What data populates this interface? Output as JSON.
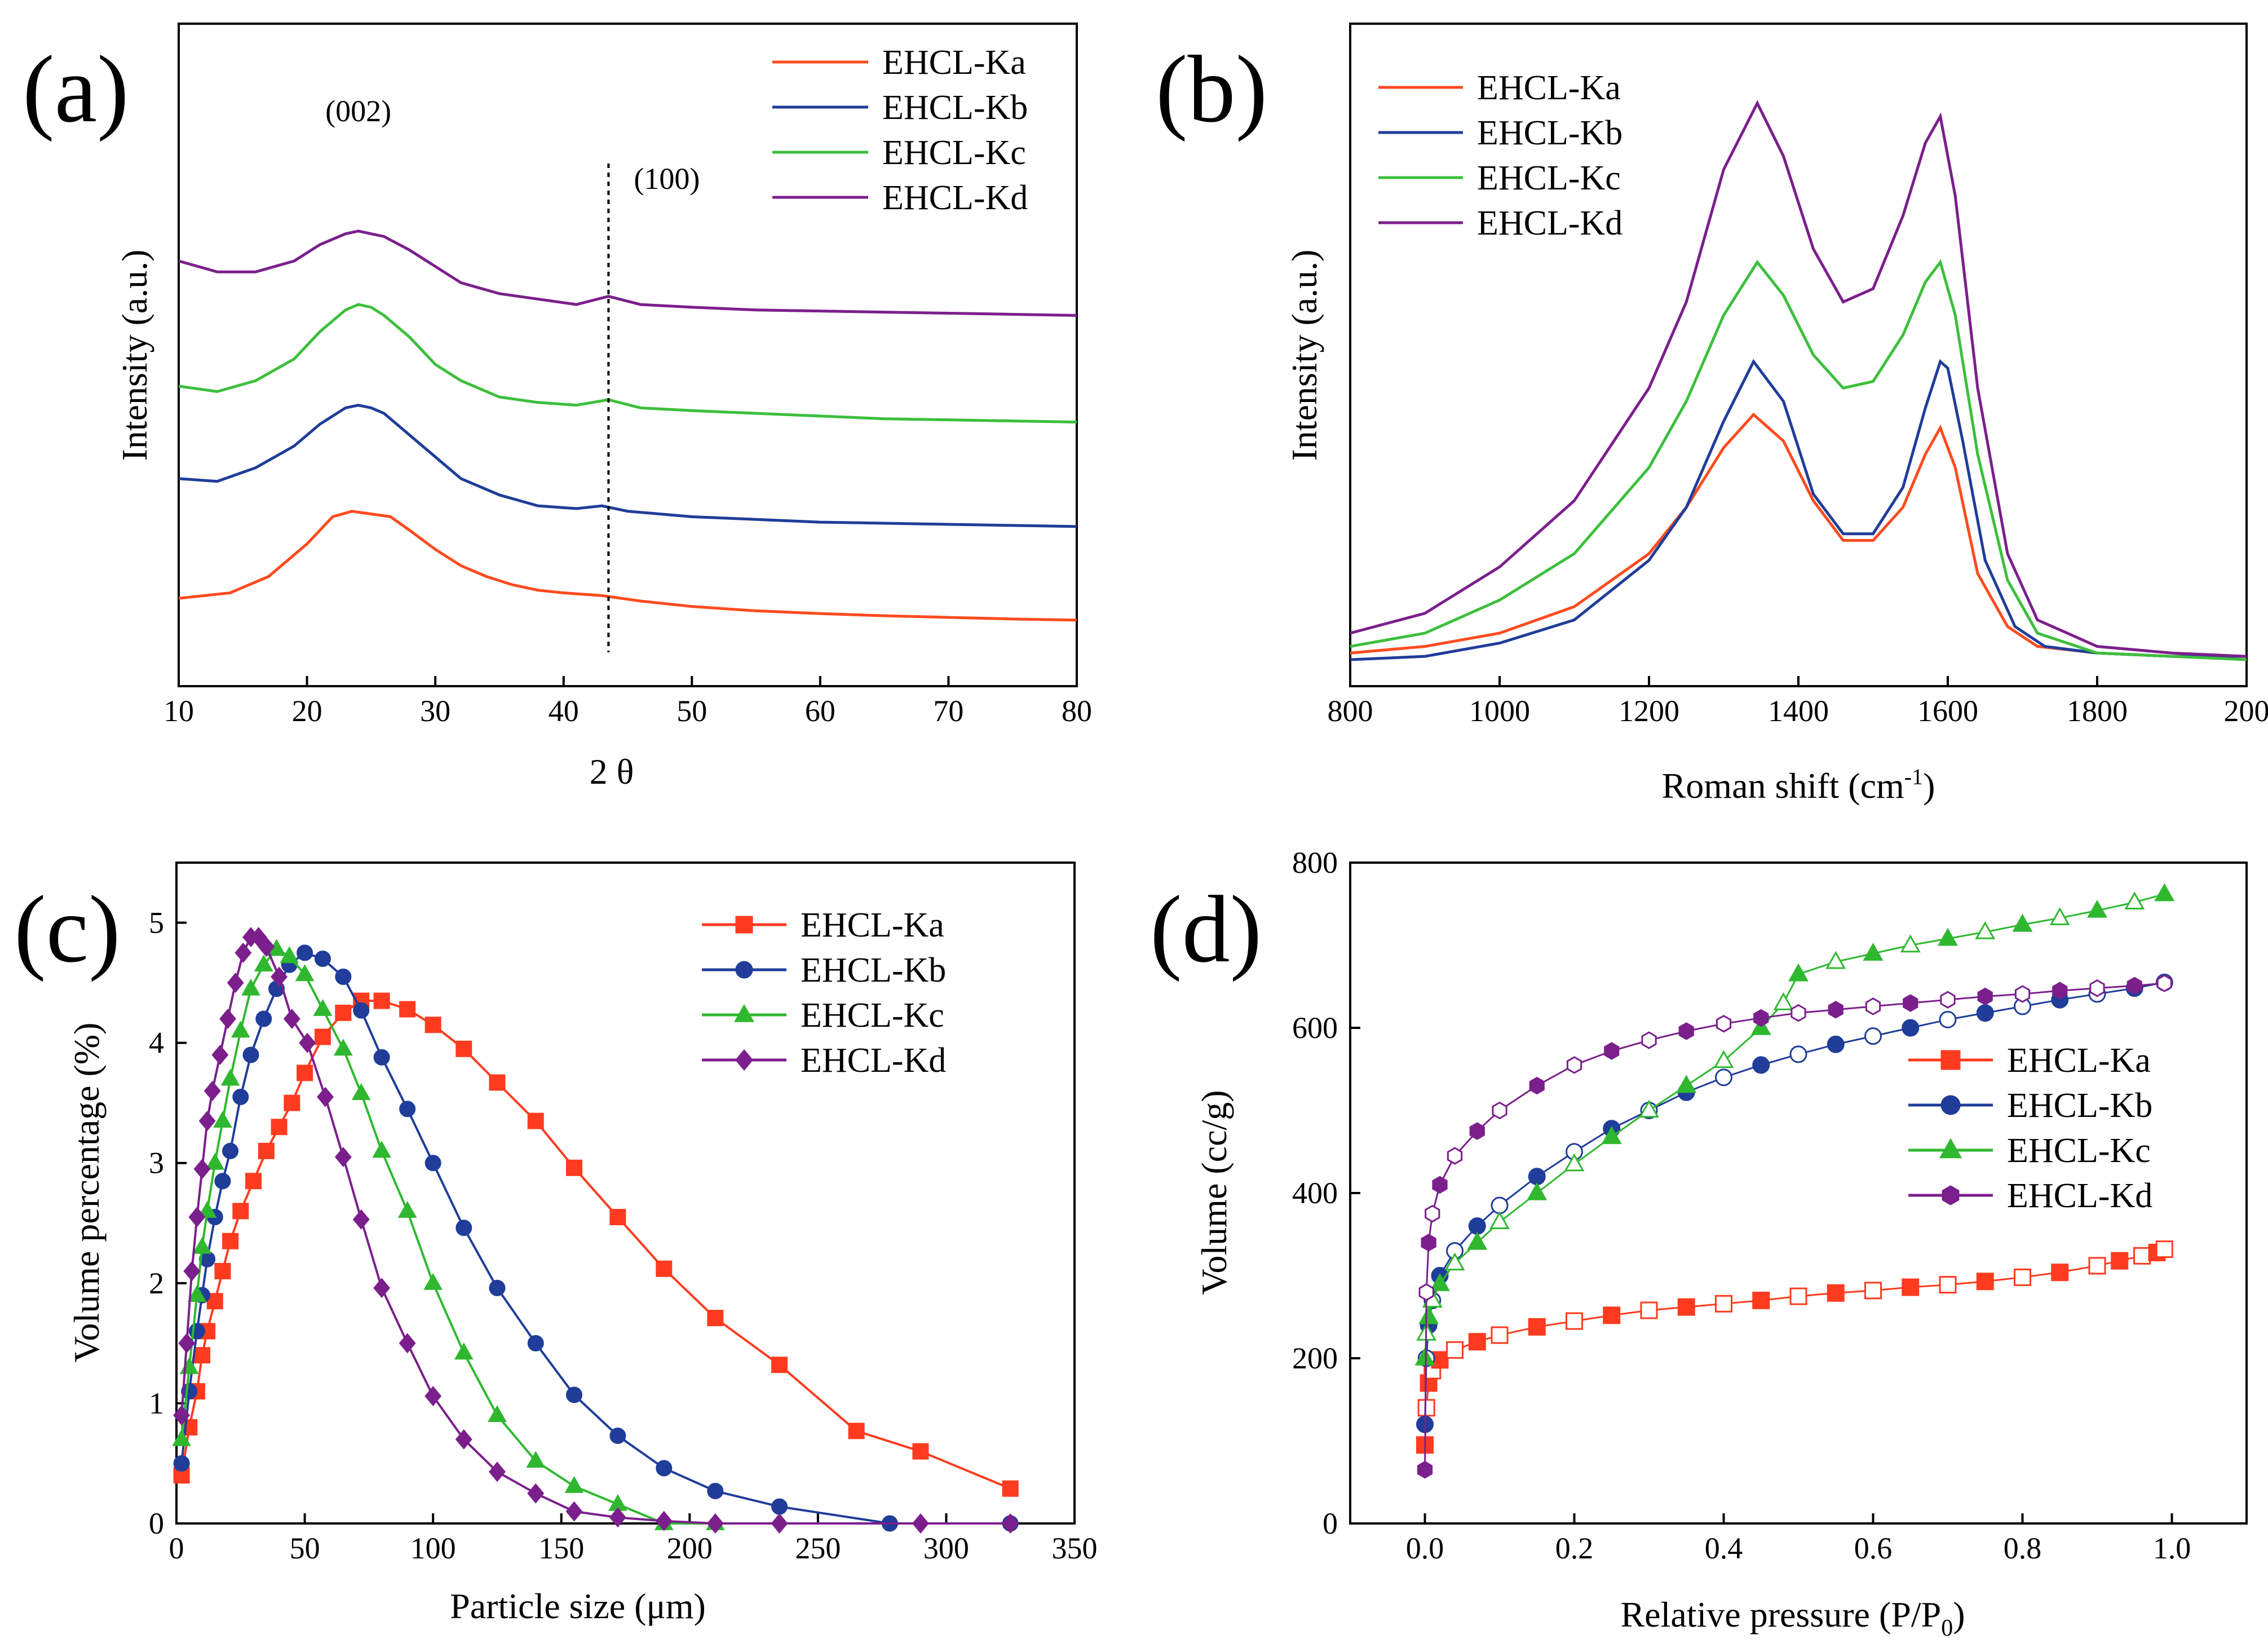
{
  "chart_data": [
    {
      "id": "a",
      "type": "line",
      "panel_label": "(a)",
      "xlabel": "2 θ",
      "ylabel": "Intensity (a.u.)",
      "xlim": [
        10,
        80
      ],
      "ylim": [
        0,
        1
      ],
      "xticks": [
        "10",
        "20",
        "30",
        "40",
        "50",
        "60",
        "70",
        "80"
      ],
      "annotations": [
        {
          "text": "(002)",
          "x": 24
        },
        {
          "text": "(100)",
          "x": 43.5
        }
      ],
      "reference_line_x": 43.5,
      "series": [
        {
          "name": "EHCL-Ka",
          "color": "#ff4b1f",
          "x": [
            10,
            14,
            17,
            20,
            22,
            23.5,
            25,
            26.5,
            28,
            30,
            32,
            34,
            36,
            38,
            40,
            43,
            46,
            50,
            55,
            60,
            65,
            70,
            75,
            80
          ],
          "y": [
            0.12,
            0.13,
            0.16,
            0.22,
            0.27,
            0.28,
            0.275,
            0.27,
            0.245,
            0.21,
            0.18,
            0.16,
            0.145,
            0.135,
            0.13,
            0.125,
            0.115,
            0.105,
            0.097,
            0.092,
            0.088,
            0.085,
            0.082,
            0.08
          ]
        },
        {
          "name": "EHCL-Kb",
          "color": "#1f3d99",
          "x": [
            10,
            13,
            16,
            19,
            21,
            23,
            24,
            25,
            26,
            28,
            30,
            32,
            35,
            38,
            41,
            43,
            45,
            50,
            55,
            60,
            65,
            70,
            75,
            80
          ],
          "y": [
            0.34,
            0.335,
            0.36,
            0.4,
            0.44,
            0.47,
            0.475,
            0.47,
            0.46,
            0.42,
            0.38,
            0.34,
            0.31,
            0.29,
            0.285,
            0.29,
            0.28,
            0.27,
            0.265,
            0.26,
            0.258,
            0.256,
            0.254,
            0.252
          ]
        },
        {
          "name": "EHCL-Kc",
          "color": "#3cbf3c",
          "x": [
            10,
            13,
            16,
            19,
            21,
            23,
            24,
            25,
            26,
            28,
            30,
            32,
            35,
            38,
            41,
            43.5,
            46,
            50,
            55,
            60,
            65,
            70,
            75,
            80
          ],
          "y": [
            0.51,
            0.5,
            0.52,
            0.56,
            0.61,
            0.65,
            0.66,
            0.655,
            0.64,
            0.6,
            0.55,
            0.52,
            0.49,
            0.48,
            0.475,
            0.485,
            0.47,
            0.465,
            0.46,
            0.455,
            0.45,
            0.448,
            0.446,
            0.444
          ]
        },
        {
          "name": "EHCL-Kd",
          "color": "#7b1f8c",
          "x": [
            10,
            13,
            16,
            19,
            21,
            23,
            24,
            25,
            26,
            28,
            30,
            32,
            35,
            38,
            41,
            43.5,
            46,
            50,
            55,
            60,
            65,
            70,
            75,
            80
          ],
          "y": [
            0.74,
            0.72,
            0.72,
            0.74,
            0.77,
            0.79,
            0.795,
            0.79,
            0.785,
            0.76,
            0.73,
            0.7,
            0.68,
            0.67,
            0.66,
            0.675,
            0.66,
            0.655,
            0.65,
            0.648,
            0.646,
            0.644,
            0.642,
            0.64
          ]
        }
      ]
    },
    {
      "id": "b",
      "type": "line",
      "panel_label": "(b)",
      "xlabel": "Roman shift (cm",
      "xlabel_sup": "-1",
      "xlabel_end": ")",
      "ylabel": "Intensity (a.u.)",
      "xlim": [
        800,
        2000
      ],
      "ylim": [
        0,
        1
      ],
      "xticks": [
        "800",
        "1000",
        "1200",
        "1400",
        "1600",
        "1800",
        "200"
      ],
      "series": [
        {
          "name": "EHCL-Ka",
          "color": "#ff4b1f",
          "x": [
            800,
            900,
            1000,
            1100,
            1200,
            1250,
            1300,
            1340,
            1380,
            1420,
            1460,
            1500,
            1540,
            1570,
            1590,
            1610,
            1640,
            1680,
            1720,
            1800,
            1900,
            2000
          ],
          "y": [
            0.05,
            0.06,
            0.08,
            0.12,
            0.2,
            0.27,
            0.36,
            0.41,
            0.37,
            0.28,
            0.22,
            0.22,
            0.27,
            0.35,
            0.39,
            0.33,
            0.17,
            0.09,
            0.06,
            0.05,
            0.045,
            0.045
          ]
        },
        {
          "name": "EHCL-Kb",
          "color": "#1f3d99",
          "x": [
            800,
            900,
            1000,
            1100,
            1200,
            1250,
            1300,
            1340,
            1380,
            1420,
            1460,
            1500,
            1540,
            1570,
            1590,
            1600,
            1620,
            1650,
            1690,
            1730,
            1800,
            1900,
            2000
          ],
          "y": [
            0.04,
            0.045,
            0.065,
            0.1,
            0.19,
            0.27,
            0.4,
            0.49,
            0.43,
            0.29,
            0.23,
            0.23,
            0.3,
            0.42,
            0.49,
            0.48,
            0.37,
            0.19,
            0.09,
            0.06,
            0.05,
            0.045,
            0.045
          ]
        },
        {
          "name": "EHCL-Kc",
          "color": "#3cbf3c",
          "x": [
            800,
            900,
            1000,
            1100,
            1200,
            1250,
            1300,
            1345,
            1380,
            1420,
            1460,
            1500,
            1540,
            1570,
            1590,
            1610,
            1640,
            1680,
            1720,
            1800,
            1900,
            2000
          ],
          "y": [
            0.06,
            0.08,
            0.13,
            0.2,
            0.33,
            0.43,
            0.56,
            0.64,
            0.59,
            0.5,
            0.45,
            0.46,
            0.53,
            0.61,
            0.64,
            0.56,
            0.35,
            0.16,
            0.08,
            0.05,
            0.045,
            0.04
          ]
        },
        {
          "name": "EHCL-Kd",
          "color": "#7b1f8c",
          "x": [
            800,
            900,
            1000,
            1100,
            1200,
            1250,
            1300,
            1345,
            1380,
            1420,
            1460,
            1500,
            1540,
            1570,
            1590,
            1610,
            1640,
            1680,
            1720,
            1800,
            1900,
            2000
          ],
          "y": [
            0.08,
            0.11,
            0.18,
            0.28,
            0.45,
            0.58,
            0.78,
            0.88,
            0.8,
            0.66,
            0.58,
            0.6,
            0.71,
            0.82,
            0.86,
            0.74,
            0.45,
            0.2,
            0.1,
            0.06,
            0.05,
            0.045
          ]
        }
      ]
    },
    {
      "id": "c",
      "type": "line",
      "panel_label": "(c)",
      "xlabel": "Particle size (μm)",
      "ylabel": "Volume percentage (%)",
      "xlim": [
        0,
        350
      ],
      "ylim": [
        0,
        5.5
      ],
      "xticks": [
        "0",
        "50",
        "100",
        "150",
        "200",
        "250",
        "300",
        "350"
      ],
      "yticks": [
        "0",
        "1",
        "2",
        "3",
        "4",
        "5"
      ],
      "series": [
        {
          "name": "EHCL-Ka",
          "color": "#ff3b1f",
          "marker": "square",
          "x": [
            2,
            5,
            8,
            10,
            12,
            15,
            18,
            21,
            25,
            30,
            35,
            40,
            45,
            50,
            57,
            65,
            72,
            80,
            90,
            100,
            112,
            125,
            140,
            155,
            172,
            190,
            210,
            235,
            265,
            290,
            325
          ],
          "y": [
            0.4,
            0.8,
            1.1,
            1.4,
            1.6,
            1.85,
            2.1,
            2.35,
            2.6,
            2.85,
            3.1,
            3.3,
            3.5,
            3.75,
            4.05,
            4.25,
            4.35,
            4.35,
            4.28,
            4.15,
            3.95,
            3.67,
            3.35,
            2.96,
            2.55,
            2.12,
            1.71,
            1.32,
            0.77,
            0.6,
            0.29
          ]
        },
        {
          "name": "EHCL-Kb",
          "color": "#1f3d99",
          "marker": "circle",
          "x": [
            2,
            5,
            8,
            10,
            12,
            15,
            18,
            21,
            25,
            29,
            34,
            39,
            44,
            50,
            57,
            65,
            72,
            80,
            90,
            100,
            112,
            125,
            140,
            155,
            172,
            190,
            210,
            235,
            278,
            325
          ],
          "y": [
            0.5,
            1.1,
            1.6,
            1.9,
            2.2,
            2.55,
            2.85,
            3.1,
            3.55,
            3.9,
            4.2,
            4.45,
            4.65,
            4.75,
            4.7,
            4.55,
            4.27,
            3.88,
            3.45,
            3.0,
            2.46,
            1.96,
            1.5,
            1.07,
            0.73,
            0.46,
            0.27,
            0.14,
            0.0,
            0.0
          ]
        },
        {
          "name": "EHCL-Kc",
          "color": "#2fb82f",
          "marker": "triangle",
          "x": [
            2,
            5,
            8,
            10,
            12,
            15,
            18,
            21,
            25,
            29,
            34,
            39,
            44,
            50,
            57,
            65,
            72,
            80,
            90,
            100,
            112,
            125,
            140,
            155,
            172,
            190,
            210
          ],
          "y": [
            0.7,
            1.3,
            1.9,
            2.3,
            2.6,
            3.0,
            3.35,
            3.7,
            4.1,
            4.45,
            4.65,
            4.78,
            4.72,
            4.57,
            4.28,
            3.95,
            3.58,
            3.1,
            2.6,
            2.0,
            1.42,
            0.9,
            0.52,
            0.31,
            0.16,
            0.0,
            0.0
          ]
        },
        {
          "name": "EHCL-Kd",
          "color": "#7b1f8c",
          "marker": "diamond",
          "x": [
            2,
            4,
            6,
            8,
            10,
            12,
            14,
            17,
            20,
            23,
            26,
            29,
            32,
            35,
            40,
            45,
            51,
            58,
            65,
            72,
            80,
            90,
            100,
            112,
            125,
            140,
            155,
            172,
            190,
            210,
            235,
            290,
            325
          ],
          "y": [
            0.9,
            1.5,
            2.1,
            2.55,
            2.95,
            3.35,
            3.6,
            3.9,
            4.2,
            4.5,
            4.75,
            4.88,
            4.88,
            4.8,
            4.55,
            4.2,
            4.0,
            3.55,
            3.05,
            2.53,
            1.96,
            1.5,
            1.06,
            0.7,
            0.43,
            0.25,
            0.1,
            0.05,
            0.02,
            0.0,
            0.0,
            0.0,
            0.0
          ]
        }
      ]
    },
    {
      "id": "d",
      "type": "scatter",
      "panel_label": "(d)",
      "xlabel": "Relative pressure (P/P",
      "xlabel_sub": "0",
      "xlabel_end": ")",
      "ylabel": "Volume (cc/g)",
      "xlim": [
        -0.1,
        1.1
      ],
      "ylim": [
        0,
        800
      ],
      "xticks": [
        "0.0",
        "0.2",
        "0.4",
        "0.6",
        "0.8",
        "1.0"
      ],
      "yticks": [
        "0",
        "200",
        "400",
        "600",
        "800"
      ],
      "series": [
        {
          "name": "EHCL-Ka",
          "color": "#ff3b1f",
          "marker": "square",
          "x": [
            0.0,
            0.002,
            0.005,
            0.01,
            0.02,
            0.04,
            0.07,
            0.1,
            0.15,
            0.2,
            0.25,
            0.3,
            0.35,
            0.4,
            0.45,
            0.5,
            0.55,
            0.6,
            0.65,
            0.7,
            0.75,
            0.8,
            0.85,
            0.9,
            0.93,
            0.96,
            0.98,
            0.99
          ],
          "y": [
            95,
            140,
            170,
            185,
            198,
            210,
            220,
            228,
            238,
            245,
            252,
            258,
            262,
            266,
            270,
            275,
            279,
            282,
            286,
            289,
            293,
            298,
            304,
            312,
            318,
            324,
            328,
            332
          ]
        },
        {
          "name": "EHCL-Kb",
          "color": "#1f3d99",
          "marker": "circle",
          "x": [
            0.0,
            0.002,
            0.005,
            0.01,
            0.02,
            0.04,
            0.07,
            0.1,
            0.15,
            0.2,
            0.25,
            0.3,
            0.35,
            0.4,
            0.45,
            0.5,
            0.55,
            0.6,
            0.65,
            0.7,
            0.75,
            0.8,
            0.85,
            0.9,
            0.95,
            0.99
          ],
          "y": [
            120,
            200,
            240,
            270,
            300,
            330,
            360,
            385,
            420,
            450,
            478,
            500,
            522,
            540,
            555,
            568,
            580,
            590,
            600,
            610,
            618,
            626,
            634,
            641,
            648,
            655
          ]
        },
        {
          "name": "EHCL-Kc",
          "color": "#2fb82f",
          "marker": "triangle",
          "x": [
            0.0,
            0.002,
            0.005,
            0.01,
            0.02,
            0.04,
            0.07,
            0.1,
            0.15,
            0.2,
            0.25,
            0.3,
            0.35,
            0.4,
            0.45,
            0.48,
            0.5,
            0.55,
            0.6,
            0.65,
            0.7,
            0.75,
            0.8,
            0.85,
            0.9,
            0.95,
            0.99
          ],
          "y": [
            200,
            230,
            250,
            270,
            290,
            315,
            340,
            365,
            400,
            435,
            468,
            500,
            530,
            560,
            600,
            630,
            665,
            680,
            690,
            700,
            708,
            716,
            725,
            733,
            742,
            752,
            762
          ]
        },
        {
          "name": "EHCL-Kd",
          "color": "#7b1f8c",
          "marker": "hexagon",
          "x": [
            0.0,
            0.002,
            0.005,
            0.01,
            0.02,
            0.04,
            0.07,
            0.1,
            0.15,
            0.2,
            0.25,
            0.3,
            0.35,
            0.4,
            0.45,
            0.5,
            0.55,
            0.6,
            0.65,
            0.7,
            0.75,
            0.8,
            0.85,
            0.9,
            0.95,
            0.99
          ],
          "y": [
            65,
            280,
            340,
            375,
            410,
            445,
            475,
            500,
            530,
            555,
            572,
            585,
            596,
            605,
            612,
            618,
            622,
            626,
            630,
            634,
            638,
            641,
            645,
            648,
            651,
            654
          ]
        }
      ]
    }
  ]
}
